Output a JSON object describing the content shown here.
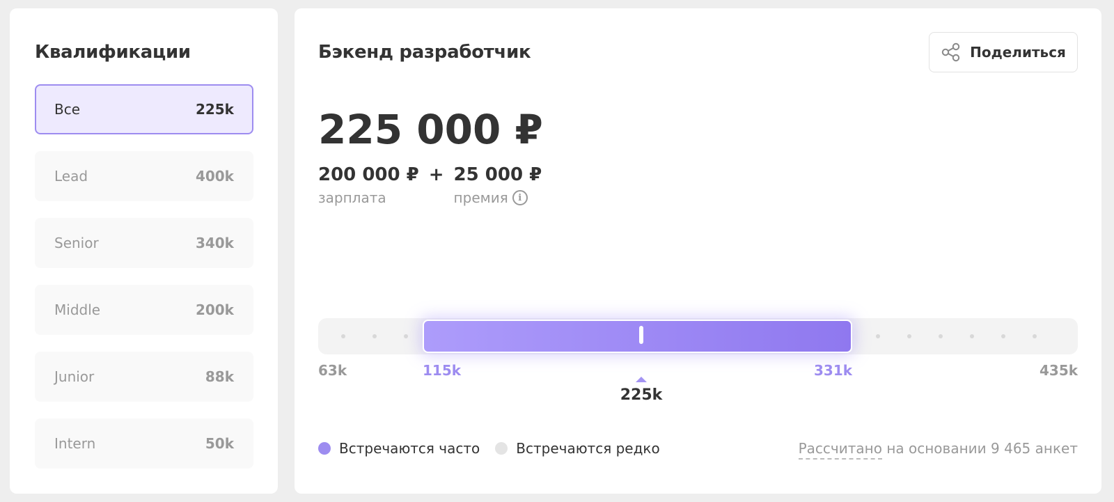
{
  "qualifications": {
    "title": "Квалификации",
    "items": [
      {
        "name": "Все",
        "value": "225k",
        "active": true
      },
      {
        "name": "Lead",
        "value": "400k",
        "active": false
      },
      {
        "name": "Senior",
        "value": "340k",
        "active": false
      },
      {
        "name": "Middle",
        "value": "200k",
        "active": false
      },
      {
        "name": "Junior",
        "value": "88k",
        "active": false
      },
      {
        "name": "Intern",
        "value": "50k",
        "active": false
      }
    ]
  },
  "main": {
    "job_title": "Бэкенд разработчик",
    "share_label": "Поделиться",
    "share_icon": "share-icon",
    "total": "225 000 ₽",
    "salary_amount": "200 000 ₽",
    "salary_label": "зарплата",
    "plus": "+",
    "bonus_amount": "25 000 ₽",
    "bonus_label": "премия",
    "info_glyph": "i"
  },
  "range": {
    "min_label": "63k",
    "low_label": "115k",
    "high_label": "331k",
    "max_label": "435k",
    "median_label": "225k",
    "min_value": 63,
    "low_value": 115,
    "high_value": 331,
    "max_value": 435,
    "median_value": 225,
    "accent_color": "#9d8cf0"
  },
  "legend": {
    "often": "Встречаются часто",
    "rare": "Встречаются редко"
  },
  "footer": {
    "calc_link": "Рассчитано",
    "calc_rest": "на основании 9 465 анкет"
  }
}
